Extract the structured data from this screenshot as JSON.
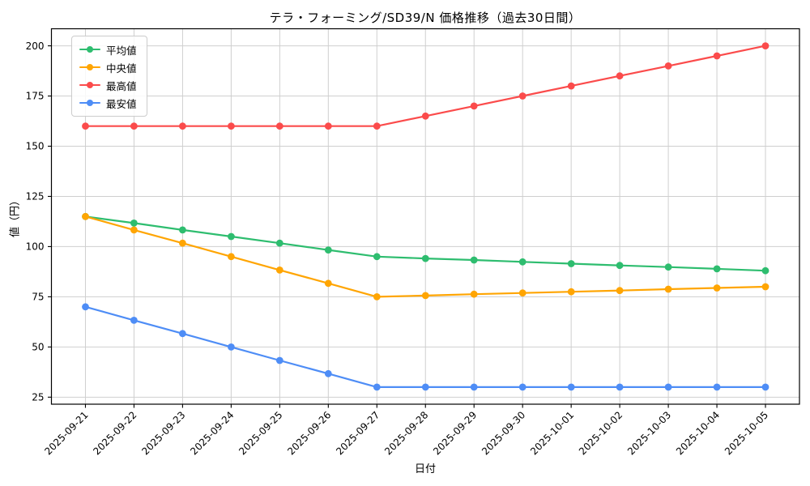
{
  "chart": {
    "title": "テラ・フォーミング/SD39/N 価格推移（過去30日間）",
    "xlabel": "日付",
    "ylabel": "値（円）"
  },
  "chart_data": {
    "type": "line",
    "title": "テラ・フォーミング/SD39/N 価格推移（過去30日間）",
    "xlabel": "日付",
    "ylabel": "値（円）",
    "x": [
      "2025-09-21",
      "2025-09-22",
      "2025-09-23",
      "2025-09-24",
      "2025-09-25",
      "2025-09-26",
      "2025-09-27",
      "2025-09-28",
      "2025-09-29",
      "2025-09-30",
      "2025-10-01",
      "2025-10-02",
      "2025-10-03",
      "2025-10-04",
      "2025-10-05"
    ],
    "series": [
      {
        "id": "average",
        "name": "平均値",
        "color": "#2ebd6f",
        "marker": "circle",
        "values": [
          115,
          111.7,
          108.3,
          105,
          101.7,
          98.3,
          95,
          94.1,
          93.3,
          92.4,
          91.5,
          90.6,
          89.8,
          88.9,
          88
        ]
      },
      {
        "id": "median",
        "name": "中央値",
        "color": "#ffa502",
        "marker": "circle",
        "values": [
          115,
          108.3,
          101.7,
          95,
          88.3,
          81.7,
          75,
          75.6,
          76.3,
          76.9,
          77.5,
          78.1,
          78.8,
          79.4,
          80
        ]
      },
      {
        "id": "max",
        "name": "最高値",
        "color": "#fb4b4b",
        "marker": "circle",
        "values": [
          160,
          160,
          160,
          160,
          160,
          160,
          160,
          165,
          170,
          175,
          180,
          185,
          190,
          195,
          200
        ]
      },
      {
        "id": "min",
        "name": "最安値",
        "color": "#4e8df6",
        "marker": "circle",
        "values": [
          70,
          63.3,
          56.7,
          50,
          43.3,
          36.7,
          30,
          30,
          30,
          30,
          30,
          30,
          30,
          30,
          30
        ]
      }
    ],
    "yticks": [
      25,
      50,
      75,
      100,
      125,
      150,
      175,
      200
    ],
    "ylim": [
      21.5,
      208.5
    ],
    "grid": true,
    "grid_color": "#cfcfcf",
    "legend_position": "upper left"
  }
}
